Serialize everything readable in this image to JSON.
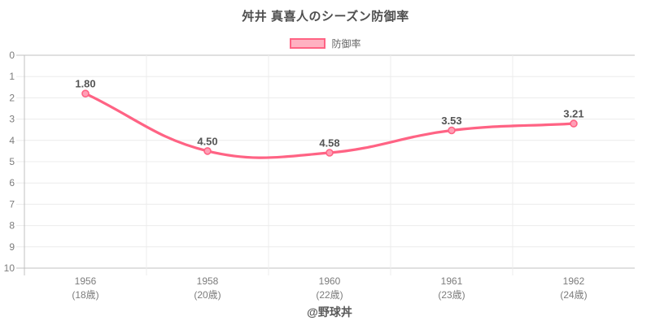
{
  "title": "舛井 真喜人のシーズン防御率",
  "legend": {
    "label": "防御率"
  },
  "watermark": "@野球丼",
  "colors": {
    "line": "#ff6384",
    "point_fill": "#ff9fb6",
    "legend_fill": "#ffb1c1",
    "grid": "#ececec",
    "axis": "#c0c0c0",
    "tick_label": "#7c7c7c",
    "data_label": "#555555",
    "title": "#4f4f4f",
    "watermark_color": "#5a5a5a",
    "background": "#ffffff"
  },
  "chart_data": {
    "type": "line",
    "title": "舛井 真喜人のシーズン防御率",
    "categories": [
      "1956",
      "1958",
      "1960",
      "1961",
      "1962"
    ],
    "category_sublabels": [
      "(18歳)",
      "(20歳)",
      "(22歳)",
      "(23歳)",
      "(24歳)"
    ],
    "series": [
      {
        "name": "防御率",
        "values": [
          1.8,
          4.5,
          4.58,
          3.53,
          3.21
        ]
      }
    ],
    "data_labels": [
      "1.80",
      "4.50",
      "4.58",
      "3.53",
      "3.21"
    ],
    "xlabel": "",
    "ylabel": "",
    "ylim": [
      0,
      10
    ],
    "y_ticks": [
      0,
      1,
      2,
      3,
      4,
      5,
      6,
      7,
      8,
      9,
      10
    ],
    "y_reversed": true,
    "grid": true,
    "legend_position": "top",
    "line_tension": 0.4
  }
}
